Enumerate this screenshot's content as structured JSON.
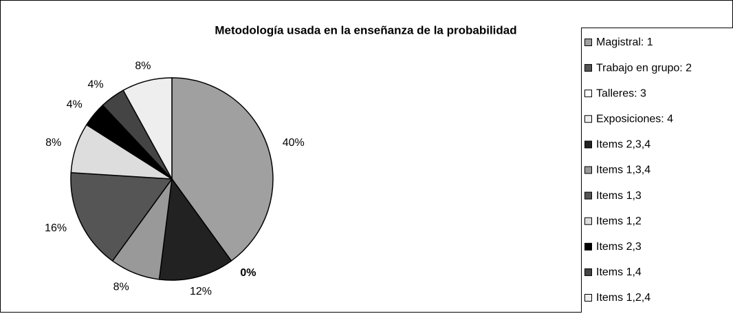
{
  "chart_data": {
    "type": "pie",
    "title": "Metodología usada en la enseñanza de la probabilidad",
    "categories": [
      "Magistral: 1",
      "Trabajo en grupo: 2",
      "Talleres: 3",
      "Exposiciones: 4",
      "Items 2,3,4",
      "Items 1,3,4",
      "Items 1,3",
      "Items 1,2",
      "Items 2,3",
      "Items 1,4",
      "Items 1,2,4"
    ],
    "values": [
      40,
      0,
      0,
      0,
      12,
      8,
      16,
      8,
      4,
      4,
      8
    ],
    "value_labels": [
      "40%",
      null,
      null,
      "0%",
      "12%",
      "8%",
      "16%",
      "8%",
      "4%",
      "4%",
      "8%"
    ],
    "colors": [
      "#a0a0a0",
      "#555555",
      "#ffffff",
      "#eeeeee",
      "#222222",
      "#999999",
      "#555555",
      "#dddddd",
      "#000000",
      "#444444",
      "#eeeeee"
    ],
    "legend": "right"
  }
}
